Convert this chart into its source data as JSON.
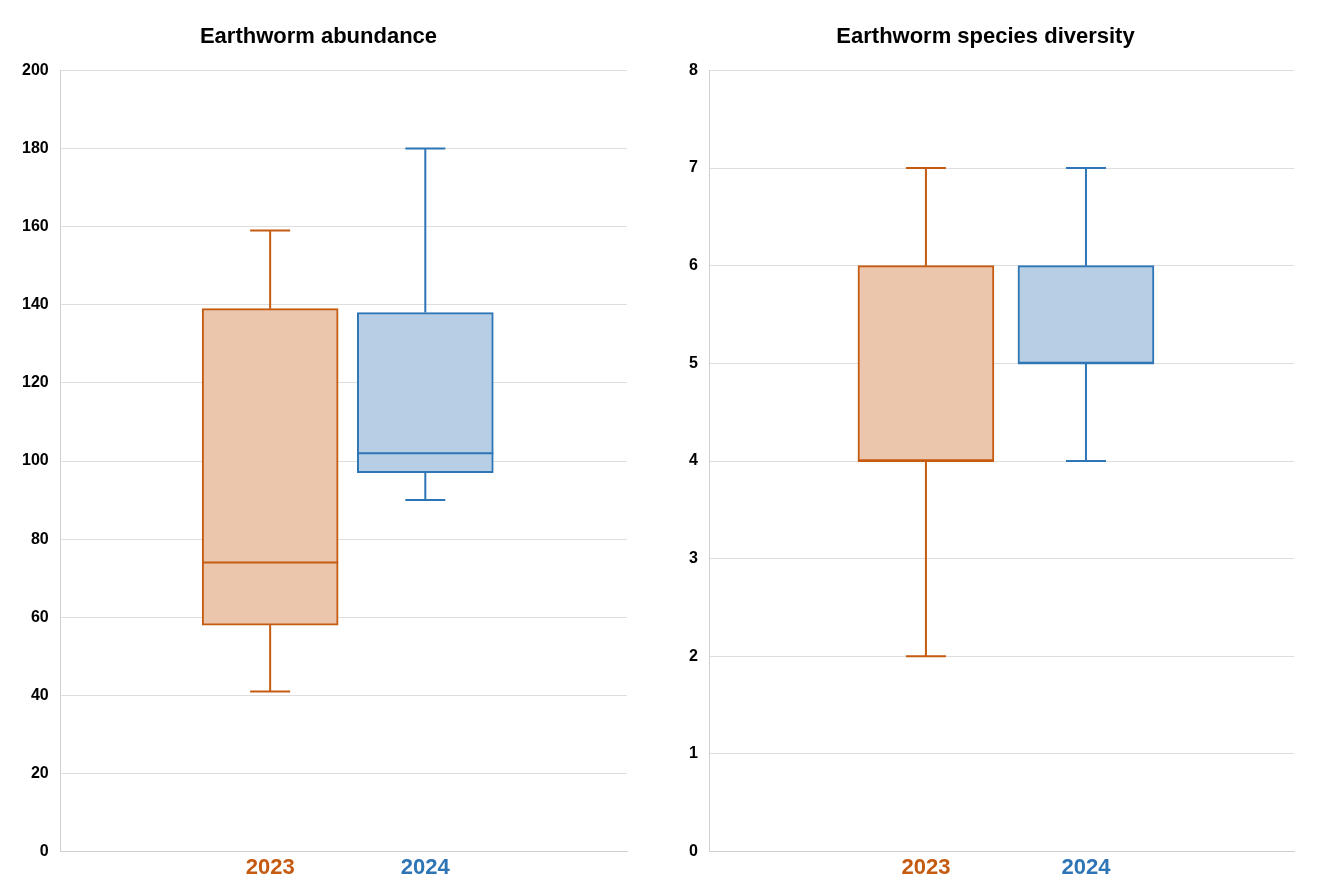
{
  "chart_data": [
    {
      "type": "box",
      "title": "Earthworm abundance",
      "categories": [
        "2023",
        "2024"
      ],
      "colors": [
        "#c55a11",
        "#2e75b6"
      ],
      "boxes": [
        {
          "low": 41,
          "q1": 58,
          "median": 74,
          "q3": 139,
          "high": 159
        },
        {
          "low": 90,
          "q1": 97,
          "median": 102,
          "q3": 138,
          "high": 180
        }
      ],
      "ylim": [
        0,
        200
      ],
      "yticks": [
        0,
        20,
        40,
        60,
        80,
        100,
        120,
        140,
        160,
        180,
        200
      ],
      "grid": "y"
    },
    {
      "type": "box",
      "title": "Earthworm species diversity",
      "categories": [
        "2023",
        "2024"
      ],
      "colors": [
        "#c55a11",
        "#2e75b6"
      ],
      "boxes": [
        {
          "low": 2,
          "q1": 4,
          "median": 4,
          "q3": 6,
          "high": 7
        },
        {
          "low": 4,
          "q1": 5,
          "median": 5,
          "q3": 6,
          "high": 7
        }
      ],
      "ylim": [
        0,
        8
      ],
      "yticks": [
        0,
        1,
        2,
        3,
        4,
        5,
        6,
        7,
        8
      ],
      "grid": "y"
    }
  ]
}
